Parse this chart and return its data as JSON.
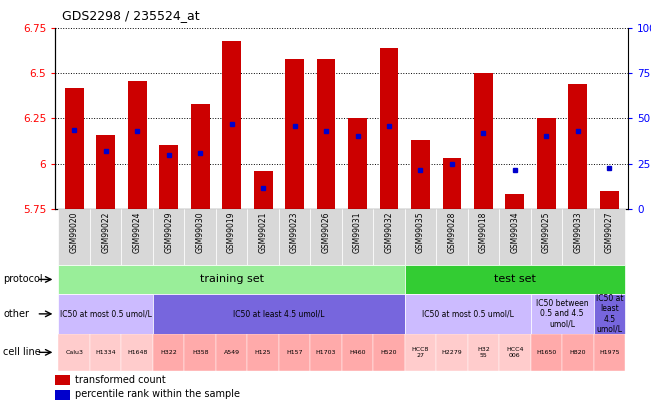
{
  "title": "GDS2298 / 235524_at",
  "samples": [
    "GSM99020",
    "GSM99022",
    "GSM99024",
    "GSM99029",
    "GSM99030",
    "GSM99019",
    "GSM99021",
    "GSM99023",
    "GSM99026",
    "GSM99031",
    "GSM99032",
    "GSM99035",
    "GSM99028",
    "GSM99018",
    "GSM99034",
    "GSM99025",
    "GSM99033",
    "GSM99027"
  ],
  "transformed_count": [
    6.42,
    6.16,
    6.46,
    6.1,
    6.33,
    6.68,
    5.96,
    6.58,
    6.58,
    6.25,
    6.64,
    6.13,
    6.03,
    6.5,
    5.83,
    6.25,
    6.44,
    5.85
  ],
  "percentile_rank": [
    0.435,
    0.32,
    0.43,
    0.3,
    0.31,
    0.47,
    0.115,
    0.46,
    0.43,
    0.4,
    0.46,
    0.215,
    0.245,
    0.42,
    0.215,
    0.4,
    0.43,
    0.225
  ],
  "ymin": 5.75,
  "ymax": 6.75,
  "yticks": [
    5.75,
    6.0,
    6.25,
    6.5,
    6.75
  ],
  "ytick_labels": [
    "5.75",
    "6",
    "6.25",
    "6.5",
    "6.75"
  ],
  "right_yticks": [
    0,
    25,
    50,
    75,
    100
  ],
  "right_ytick_labels": [
    "0",
    "25",
    "50",
    "75",
    "100%"
  ],
  "bar_color": "#cc0000",
  "dot_color": "#0000cc",
  "protocol_colors": {
    "training set": "#99ee99",
    "test set": "#33cc33"
  },
  "protocol_groups": [
    {
      "label": "training set",
      "start": 0,
      "end": 11
    },
    {
      "label": "test set",
      "start": 11,
      "end": 18
    }
  ],
  "other_groups": [
    {
      "label": "IC50 at most 0.5 umol/L",
      "start": 0,
      "end": 3,
      "color": "#ccbbff"
    },
    {
      "label": "IC50 at least 4.5 umol/L",
      "start": 3,
      "end": 11,
      "color": "#7766dd"
    },
    {
      "label": "IC50 at most 0.5 umol/L",
      "start": 11,
      "end": 15,
      "color": "#ccbbff"
    },
    {
      "label": "IC50 between\n0.5 and 4.5\numol/L",
      "start": 15,
      "end": 17,
      "color": "#ccbbff"
    },
    {
      "label": "IC50 at\nleast\n4.5\numol/L",
      "start": 17,
      "end": 18,
      "color": "#7766dd"
    }
  ],
  "cell_lines": [
    {
      "label": "Calu3",
      "start": 0,
      "end": 1,
      "color": "#ffcccc"
    },
    {
      "label": "H1334",
      "start": 1,
      "end": 2,
      "color": "#ffcccc"
    },
    {
      "label": "H1648",
      "start": 2,
      "end": 3,
      "color": "#ffcccc"
    },
    {
      "label": "H322",
      "start": 3,
      "end": 4,
      "color": "#ffaaaa"
    },
    {
      "label": "H358",
      "start": 4,
      "end": 5,
      "color": "#ffaaaa"
    },
    {
      "label": "A549",
      "start": 5,
      "end": 6,
      "color": "#ffaaaa"
    },
    {
      "label": "H125",
      "start": 6,
      "end": 7,
      "color": "#ffaaaa"
    },
    {
      "label": "H157",
      "start": 7,
      "end": 8,
      "color": "#ffaaaa"
    },
    {
      "label": "H1703",
      "start": 8,
      "end": 9,
      "color": "#ffaaaa"
    },
    {
      "label": "H460",
      "start": 9,
      "end": 10,
      "color": "#ffaaaa"
    },
    {
      "label": "H520",
      "start": 10,
      "end": 11,
      "color": "#ffaaaa"
    },
    {
      "label": "HCC8\n27",
      "start": 11,
      "end": 12,
      "color": "#ffcccc"
    },
    {
      "label": "H2279",
      "start": 12,
      "end": 13,
      "color": "#ffcccc"
    },
    {
      "label": "H32\n55",
      "start": 13,
      "end": 14,
      "color": "#ffcccc"
    },
    {
      "label": "HCC4\n006",
      "start": 14,
      "end": 15,
      "color": "#ffcccc"
    },
    {
      "label": "H1650",
      "start": 15,
      "end": 16,
      "color": "#ffaaaa"
    },
    {
      "label": "H820",
      "start": 16,
      "end": 17,
      "color": "#ffaaaa"
    },
    {
      "label": "H1975",
      "start": 17,
      "end": 18,
      "color": "#ffaaaa"
    }
  ],
  "left_labels": [
    {
      "text": "protocol",
      "row": "protocol"
    },
    {
      "text": "other",
      "row": "other"
    },
    {
      "text": "cell line",
      "row": "cell"
    }
  ]
}
